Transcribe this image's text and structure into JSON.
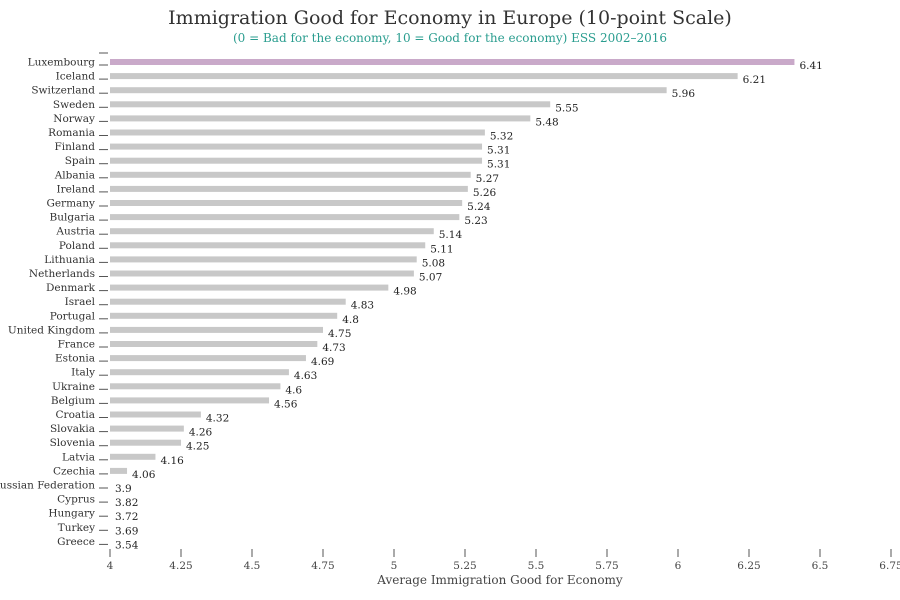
{
  "chart_data": {
    "type": "bar",
    "orientation": "horizontal",
    "title": "Immigration Good for Economy in Europe (10-point Scale)",
    "subtitle": "(0 = Bad for the economy, 10 = Good for the economy) ESS 2002–2016",
    "xlabel": "Average Immigration Good for Economy",
    "xlim": [
      4,
      6.75
    ],
    "xticks": [
      "4",
      "4.25",
      "4.5",
      "4.75",
      "5",
      "5.25",
      "5.5",
      "5.75",
      "6",
      "6.25",
      "6.5",
      "6.75"
    ],
    "categories": [
      "Luxembourg",
      "Iceland",
      "Switzerland",
      "Sweden",
      "Norway",
      "Romania",
      "Finland",
      "Spain",
      "Albania",
      "Ireland",
      "Germany",
      "Bulgaria",
      "Austria",
      "Poland",
      "Lithuania",
      "Netherlands",
      "Denmark",
      "Israel",
      "Portugal",
      "United Kingdom",
      "France",
      "Estonia",
      "Italy",
      "Ukraine",
      "Belgium",
      "Croatia",
      "Slovakia",
      "Slovenia",
      "Latvia",
      "Czechia",
      "Russian Federation",
      "Cyprus",
      "Hungary",
      "Turkey",
      "Greece"
    ],
    "values": [
      6.41,
      6.21,
      5.96,
      5.55,
      5.48,
      5.32,
      5.31,
      5.31,
      5.27,
      5.26,
      5.24,
      5.23,
      5.14,
      5.11,
      5.08,
      5.07,
      4.98,
      4.83,
      4.8,
      4.75,
      4.73,
      4.69,
      4.63,
      4.6,
      4.56,
      4.32,
      4.26,
      4.25,
      4.16,
      4.06,
      3.9,
      3.82,
      3.72,
      3.69,
      3.54
    ],
    "value_labels": [
      "6.41",
      "6.21",
      "5.96",
      "5.55",
      "5.48",
      "5.32",
      "5.31",
      "5.31",
      "5.27",
      "5.26",
      "5.24",
      "5.23",
      "5.14",
      "5.11",
      "5.08",
      "5.07",
      "4.98",
      "4.83",
      "4.8",
      "4.75",
      "4.73",
      "4.69",
      "4.63",
      "4.6",
      "4.56",
      "4.32",
      "4.26",
      "4.25",
      "4.16",
      "4.06",
      "3.9",
      "3.82",
      "3.72",
      "3.69",
      "3.54"
    ],
    "highlight": "Luxembourg",
    "colors": {
      "bar": "#c8c8c8",
      "highlight": "#c9a9c9",
      "subtitle": "#2a9d8f"
    },
    "grid": false
  }
}
